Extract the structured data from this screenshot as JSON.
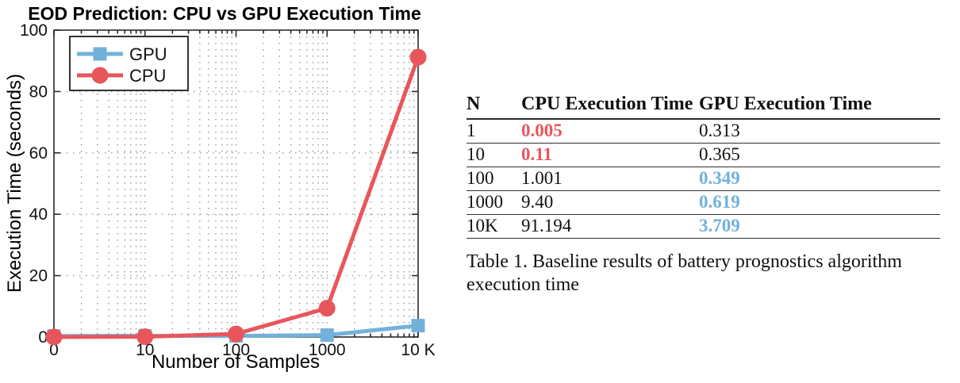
{
  "chart_data": {
    "type": "line",
    "title": "EOD Prediction: CPU vs GPU Execution Time",
    "xlabel": "Number of Samples",
    "ylabel": "Execution Time (seconds)",
    "x_scale": "log",
    "x": [
      1,
      10,
      100,
      1000,
      10000
    ],
    "xtick_labels": [
      "0",
      "10",
      "100",
      "1000",
      "10 K"
    ],
    "ylim": [
      0,
      100
    ],
    "yticks": [
      0,
      20,
      40,
      60,
      80,
      100
    ],
    "grid": "dotted: vertical minor+major log lines, horizontal major lines",
    "legend_position": "top-left",
    "series": [
      {
        "name": "GPU",
        "marker": "square",
        "color": "#72b1da",
        "values": [
          0.313,
          0.365,
          0.349,
          0.619,
          3.709
        ]
      },
      {
        "name": "CPU",
        "marker": "circle",
        "color": "#e8565b",
        "values": [
          0.005,
          0.11,
          1.001,
          9.4,
          91.194
        ]
      }
    ]
  },
  "table": {
    "headers": [
      "N",
      "CPU Execution Time",
      "GPU Execution Time"
    ],
    "rows": [
      {
        "n": "1",
        "cpu": "0.005",
        "gpu": "0.313",
        "cpu_highlight": true,
        "gpu_highlight": false
      },
      {
        "n": "10",
        "cpu": "0.11",
        "gpu": "0.365",
        "cpu_highlight": true,
        "gpu_highlight": false
      },
      {
        "n": "100",
        "cpu": "1.001",
        "gpu": "0.349",
        "cpu_highlight": false,
        "gpu_highlight": true
      },
      {
        "n": "1000",
        "cpu": "9.40",
        "gpu": "0.619",
        "cpu_highlight": false,
        "gpu_highlight": true
      },
      {
        "n": "10K",
        "cpu": "91.194",
        "gpu": "3.709",
        "cpu_highlight": false,
        "gpu_highlight": true
      }
    ],
    "caption_lines": [
      "Table 1. Baseline results of battery prognostics algorithm",
      "execution time"
    ]
  },
  "colors": {
    "cpu_red": "#e8565b",
    "gpu_blue": "#72b1da",
    "axis": "#2a2a2a",
    "grid_dot": "#999999"
  }
}
